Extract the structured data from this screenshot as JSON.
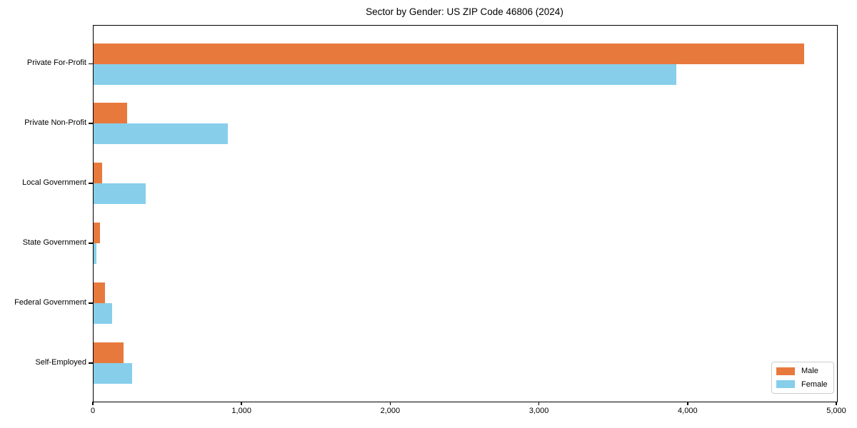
{
  "chart_data": {
    "type": "bar",
    "orientation": "horizontal",
    "title": "Sector by Gender: US ZIP Code 46806 (2024)",
    "categories": [
      "Private For-Profit",
      "Private Non-Profit",
      "Local Government",
      "State Government",
      "Federal Government",
      "Self-Employed"
    ],
    "series": [
      {
        "name": "Male",
        "color": "#E8793D",
        "values": [
          4780,
          225,
          60,
          45,
          78,
          200
        ]
      },
      {
        "name": "Female",
        "color": "#87CEEB",
        "values": [
          3920,
          905,
          350,
          18,
          125,
          260
        ]
      }
    ],
    "xlim": [
      0,
      5000
    ],
    "xticks": [
      0,
      1000,
      2000,
      3000,
      4000,
      5000
    ],
    "xtick_labels": [
      "0",
      "1,000",
      "2,000",
      "3,000",
      "4,000",
      "5,000"
    ],
    "ylabel": "",
    "xlabel": "",
    "grid": false,
    "legend_position": "lower right",
    "legend_labels": [
      "Male",
      "Female"
    ],
    "frame_color": "#000000",
    "background_color": "#ffffff"
  }
}
